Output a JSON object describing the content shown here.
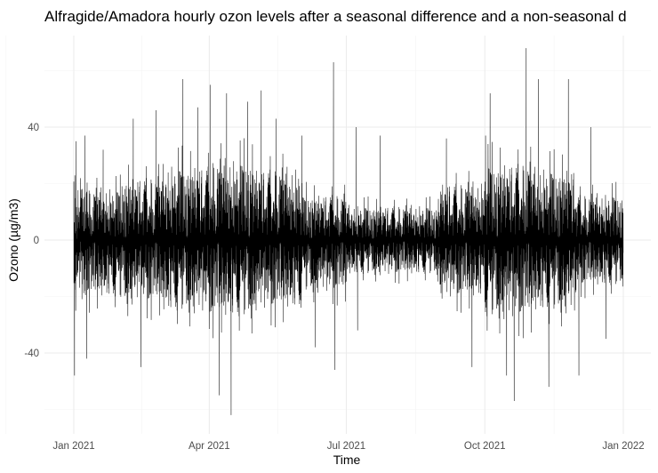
{
  "chart_data": {
    "type": "line",
    "title": "Alfragide/Amadora hourly ozon levels after a seasonal difference and a non-seasonal d",
    "xlabel": "Time",
    "ylabel": "Ozono (µg/m3)",
    "x_ticks": [
      "Jan 2021",
      "Apr 2021",
      "Jul 2021",
      "Oct 2021",
      "Jan 2022"
    ],
    "x_range": [
      "2021-01-01",
      "2022-01-01"
    ],
    "y_ticks": [
      -40,
      0,
      40
    ],
    "ylim": [
      -65,
      72
    ],
    "grid": true,
    "legend": "none",
    "series_color": "#000000",
    "series": [
      {
        "sampling": "hourly",
        "typical_band_by_month": [
          {
            "month": "2021-01",
            "low": -20,
            "high": 18
          },
          {
            "month": "2021-02",
            "low": -22,
            "high": 22
          },
          {
            "month": "2021-03",
            "low": -25,
            "high": 26
          },
          {
            "month": "2021-04",
            "low": -27,
            "high": 28
          },
          {
            "month": "2021-05",
            "low": -24,
            "high": 25
          },
          {
            "month": "2021-06",
            "low": -18,
            "high": 16
          },
          {
            "month": "2021-07",
            "low": -12,
            "high": 12
          },
          {
            "month": "2021-08",
            "low": -12,
            "high": 12
          },
          {
            "month": "2021-09",
            "low": -20,
            "high": 20
          },
          {
            "month": "2021-10",
            "low": -27,
            "high": 27
          },
          {
            "month": "2021-11",
            "low": -25,
            "high": 25
          },
          {
            "month": "2021-12",
            "low": -16,
            "high": 16
          }
        ],
        "extremes": [
          {
            "x": "2021-01-01",
            "y": -48
          },
          {
            "x": "2021-01-02",
            "y": 35
          },
          {
            "x": "2021-01-08",
            "y": 37
          },
          {
            "x": "2021-01-09",
            "y": -42
          },
          {
            "x": "2021-01-20",
            "y": 32
          },
          {
            "x": "2021-02-09",
            "y": 43
          },
          {
            "x": "2021-02-14",
            "y": -45
          },
          {
            "x": "2021-02-24",
            "y": 46
          },
          {
            "x": "2021-03-14",
            "y": 57
          },
          {
            "x": "2021-03-24",
            "y": 47
          },
          {
            "x": "2021-04-01",
            "y": 55
          },
          {
            "x": "2021-04-07",
            "y": -55
          },
          {
            "x": "2021-04-12",
            "y": 52
          },
          {
            "x": "2021-04-15",
            "y": -62
          },
          {
            "x": "2021-04-26",
            "y": 49
          },
          {
            "x": "2021-05-05",
            "y": 53
          },
          {
            "x": "2021-05-15",
            "y": 43
          },
          {
            "x": "2021-06-01",
            "y": 37
          },
          {
            "x": "2021-06-10",
            "y": -38
          },
          {
            "x": "2021-06-22",
            "y": 63
          },
          {
            "x": "2021-06-23",
            "y": -46
          },
          {
            "x": "2021-07-07",
            "y": 40
          },
          {
            "x": "2021-07-08",
            "y": -32
          },
          {
            "x": "2021-07-23",
            "y": 37
          },
          {
            "x": "2021-09-05",
            "y": 36
          },
          {
            "x": "2021-09-22",
            "y": -45
          },
          {
            "x": "2021-10-01",
            "y": 37
          },
          {
            "x": "2021-10-04",
            "y": 52
          },
          {
            "x": "2021-10-15",
            "y": -48
          },
          {
            "x": "2021-10-20",
            "y": -57
          },
          {
            "x": "2021-10-28",
            "y": 68
          },
          {
            "x": "2021-11-05",
            "y": 57
          },
          {
            "x": "2021-11-12",
            "y": -52
          },
          {
            "x": "2021-11-25",
            "y": 57
          },
          {
            "x": "2021-12-02",
            "y": -48
          },
          {
            "x": "2021-12-10",
            "y": 40
          },
          {
            "x": "2021-12-20",
            "y": -35
          }
        ]
      }
    ]
  }
}
